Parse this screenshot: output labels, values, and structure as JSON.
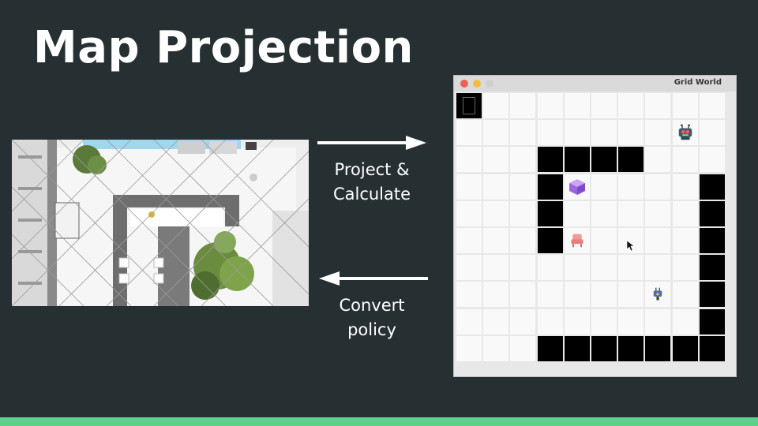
{
  "slide": {
    "title": "Map Projection",
    "forward_label_line1": "Project &",
    "forward_label_line2": "Calculate",
    "backward_label_line1": "Convert",
    "backward_label_line2": "policy",
    "accent_color": "#5fcf8e"
  },
  "window": {
    "title": "Grid World"
  },
  "grid": {
    "rows": 10,
    "cols": 10,
    "walls": [
      [
        0,
        0
      ],
      [
        2,
        3
      ],
      [
        2,
        4
      ],
      [
        2,
        5
      ],
      [
        2,
        6
      ],
      [
        3,
        3
      ],
      [
        4,
        3
      ],
      [
        5,
        3
      ],
      [
        3,
        9
      ],
      [
        4,
        9
      ],
      [
        5,
        9
      ],
      [
        6,
        9
      ],
      [
        7,
        9
      ],
      [
        8,
        9
      ],
      [
        9,
        3
      ],
      [
        9,
        4
      ],
      [
        9,
        5
      ],
      [
        9,
        6
      ],
      [
        9,
        7
      ],
      [
        9,
        8
      ],
      [
        9,
        9
      ]
    ],
    "objects": [
      {
        "name": "robot-icon",
        "row": 1,
        "col": 8
      },
      {
        "name": "cube-icon",
        "row": 3,
        "col": 4
      },
      {
        "name": "chair-icon",
        "row": 5,
        "col": 4
      },
      {
        "name": "plug-icon",
        "row": 7,
        "col": 7
      }
    ]
  }
}
